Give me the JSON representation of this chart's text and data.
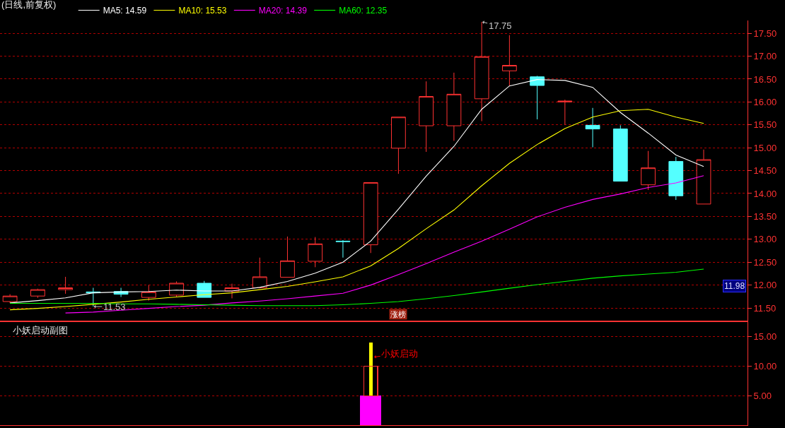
{
  "chart_data": [
    {
      "type": "candlestick",
      "title": "(日线,前复权)",
      "categories": [
        null,
        null,
        null,
        null,
        null,
        null,
        null,
        null,
        null,
        null,
        null,
        null,
        null,
        null,
        null,
        null,
        null,
        null,
        null,
        null,
        null,
        null,
        null,
        null,
        null,
        null
      ],
      "ohlc": [
        [
          11.64,
          11.8,
          11.61,
          11.76
        ],
        [
          11.76,
          11.92,
          11.72,
          11.9
        ],
        [
          11.9,
          12.18,
          11.81,
          11.94
        ],
        [
          11.85,
          11.94,
          11.53,
          11.83
        ],
        [
          11.86,
          11.94,
          11.74,
          11.8
        ],
        [
          11.73,
          12.0,
          11.66,
          11.85
        ],
        [
          11.78,
          12.08,
          11.74,
          12.04
        ],
        [
          12.04,
          12.09,
          11.73,
          11.73
        ],
        [
          11.87,
          12.03,
          11.71,
          11.94
        ],
        [
          11.94,
          12.6,
          11.93,
          12.18
        ],
        [
          12.17,
          13.06,
          12.17,
          12.53
        ],
        [
          12.52,
          13.05,
          12.39,
          12.9
        ],
        [
          12.96,
          12.98,
          12.6,
          12.95
        ],
        [
          12.88,
          14.24,
          12.7,
          14.24
        ],
        [
          14.99,
          15.67,
          14.43,
          15.67
        ],
        [
          15.48,
          16.45,
          14.91,
          16.12
        ],
        [
          15.48,
          16.64,
          15.15,
          16.17
        ],
        [
          16.07,
          17.75,
          15.58,
          16.99
        ],
        [
          16.68,
          17.46,
          16.35,
          16.8
        ],
        [
          16.55,
          16.57,
          15.62,
          16.36
        ],
        [
          16.0,
          16.05,
          15.5,
          16.02
        ],
        [
          15.49,
          15.87,
          15.01,
          15.41
        ],
        [
          15.41,
          15.49,
          14.27,
          14.27
        ],
        [
          14.19,
          14.93,
          14.08,
          14.56
        ],
        [
          14.7,
          14.8,
          13.86,
          13.95
        ],
        [
          13.77,
          14.96,
          13.77,
          14.74
        ]
      ],
      "colors": [
        "#ff3232",
        "#ff3232",
        "#ff3232",
        "#54ffff",
        "#54ffff",
        "#ff3232",
        "#ff3232",
        "#54ffff",
        "#ff3232",
        "#ff3232",
        "#ff3232",
        "#ff3232",
        "#54ffff",
        "#ff3232",
        "#ff3232",
        "#ff3232",
        "#ff3232",
        "#ff3232",
        "#ff3232",
        "#54ffff",
        "#ff3232",
        "#54ffff",
        "#54ffff",
        "#ff3232",
        "#54ffff",
        "#ff3232"
      ],
      "series": [
        {
          "name": "MA5: 14.59",
          "type": "line",
          "color": "#ffffff",
          "values": [
            11.61,
            11.66,
            11.72,
            11.83,
            11.85,
            11.86,
            11.89,
            11.87,
            11.87,
            11.95,
            12.08,
            12.26,
            12.5,
            12.96,
            13.66,
            14.38,
            15.03,
            15.84,
            16.35,
            16.49,
            16.47,
            16.32,
            15.77,
            15.32,
            14.84,
            14.59
          ]
        },
        {
          "name": "MA10: 15.53",
          "type": "line",
          "color": "#ffff00",
          "values": [
            11.46,
            11.49,
            11.53,
            11.58,
            11.63,
            11.69,
            11.74,
            11.79,
            11.83,
            11.9,
            11.97,
            12.07,
            12.18,
            12.42,
            12.8,
            13.23,
            13.64,
            14.17,
            14.66,
            15.07,
            15.42,
            15.67,
            15.81,
            15.84,
            15.67,
            15.53
          ]
        },
        {
          "name": "MA20: 14.39",
          "type": "line",
          "color": "#ff00ff",
          "values": [
            null,
            null,
            11.39,
            11.41,
            11.45,
            11.49,
            11.53,
            11.56,
            11.61,
            11.65,
            11.7,
            11.76,
            11.82,
            12.0,
            12.23,
            12.47,
            12.72,
            12.96,
            13.22,
            13.49,
            13.7,
            13.87,
            13.99,
            14.13,
            14.23,
            14.39
          ]
        },
        {
          "name": "MA60: 12.35",
          "type": "line",
          "color": "#00ff00",
          "values": [
            11.6,
            11.6,
            11.6,
            11.6,
            11.59,
            11.59,
            11.58,
            11.57,
            11.56,
            11.55,
            11.55,
            11.55,
            11.57,
            11.6,
            11.64,
            11.7,
            11.77,
            11.85,
            11.93,
            12.01,
            12.08,
            12.15,
            12.2,
            12.24,
            12.28,
            12.35
          ]
        }
      ],
      "ylim": [
        11.22,
        17.78
      ],
      "yticks": [
        {
          "value": 11.5,
          "label": "11.50"
        },
        {
          "value": 12,
          "label": "12.00"
        },
        {
          "value": 12.5,
          "label": "12.50"
        },
        {
          "value": 13,
          "label": "13.00"
        },
        {
          "value": 13.5,
          "label": "13.50"
        },
        {
          "value": 14,
          "label": "14.00"
        },
        {
          "value": 14.5,
          "label": "14.50"
        },
        {
          "value": 15,
          "label": "15.00"
        },
        {
          "value": 15.5,
          "label": "15.50"
        },
        {
          "value": 16,
          "label": "16.00"
        },
        {
          "value": 16.5,
          "label": "16.50"
        },
        {
          "value": 17,
          "label": "17.00"
        },
        {
          "value": 17.5,
          "label": "17.50"
        }
      ],
      "grid": "y",
      "legend": "top left",
      "tick_labels": "y",
      "annotations": [
        "17.75",
        "11.53",
        "11.98",
        "涨榜"
      ]
    },
    {
      "type": "bar",
      "title": "小妖启动副图",
      "categories": [
        null,
        null,
        null,
        null,
        null,
        null,
        null,
        null,
        null,
        null,
        null,
        null,
        null,
        null,
        null,
        null,
        null,
        null,
        null,
        null,
        null,
        null,
        null,
        null,
        null,
        null
      ],
      "stacked": true,
      "series": [
        {
          "color": "#ff00ff",
          "values": [
            null,
            null,
            null,
            null,
            null,
            null,
            null,
            null,
            null,
            null,
            null,
            null,
            null,
            5,
            null,
            null,
            null,
            null,
            null,
            null,
            null,
            null,
            null,
            null,
            null,
            null
          ],
          "errors": [
            null,
            null,
            null,
            null,
            null,
            null,
            null,
            null,
            null,
            null,
            null,
            null,
            null,
            [
              5,
              14
            ],
            null,
            null,
            null,
            null,
            null,
            null,
            null,
            null,
            null,
            null,
            null,
            null
          ]
        },
        {
          "color": "#ff3232",
          "values": [
            null,
            null,
            null,
            null,
            null,
            null,
            null,
            null,
            null,
            null,
            null,
            null,
            null,
            5,
            null,
            null,
            null,
            null,
            null,
            null,
            null,
            null,
            null,
            null,
            null,
            null
          ]
        }
      ],
      "ylim": [
        0,
        17.5
      ],
      "yticks": [
        {
          "value": 5,
          "label": "5.00"
        },
        {
          "value": 10,
          "label": "10.00"
        },
        {
          "value": 15,
          "label": "15.00"
        }
      ],
      "grid": "y",
      "tick_labels": "y",
      "annotations": [
        "小妖启动"
      ]
    }
  ]
}
